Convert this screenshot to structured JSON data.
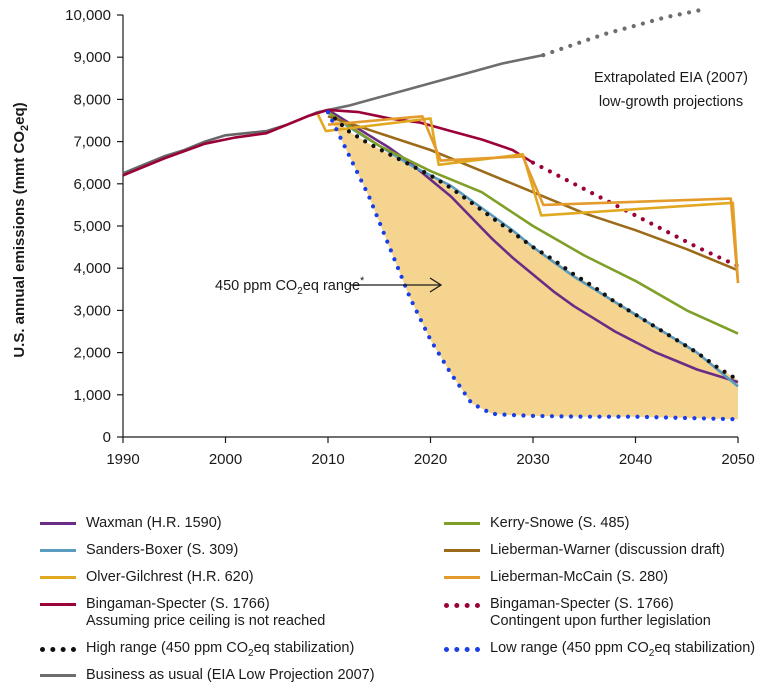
{
  "chart_data": {
    "type": "line",
    "ylabel": "U.S. annual emissions (mmt CO2eq)",
    "xlim": [
      1990,
      2050
    ],
    "ylim": [
      0,
      10000
    ],
    "x_ticks": [
      "1990",
      "2000",
      "2010",
      "2020",
      "2030",
      "2040",
      "2050"
    ],
    "y_ticks": [
      "0",
      "1,000",
      "2,000",
      "3,000",
      "4,000",
      "5,000",
      "6,000",
      "7,000",
      "8,000",
      "9,000",
      "10,000"
    ],
    "annotations": {
      "extrapolated_line1": "Extrapolated EIA (2007)",
      "extrapolated_line2": "low-growth projections",
      "range_label": "450 ppm CO",
      "range_label_sub": "2",
      "range_label_end": "eq range",
      "range_label_star": "*"
    },
    "range_band": {
      "name": "450 ppm CO2eq range",
      "color": "#f5d48f",
      "upper": "high_range",
      "lower": "low_range"
    },
    "series": [
      {
        "key": "history",
        "style": "solid",
        "color": "#666666",
        "x": [
          1990,
          1992,
          1994,
          1996,
          1998,
          2000,
          2002,
          2004,
          2006,
          2008,
          2009
        ],
        "y": [
          6250,
          6450,
          6650,
          6800,
          7000,
          7150,
          7200,
          7250,
          7400,
          7600,
          7700
        ]
      },
      {
        "key": "bau",
        "style": "solid",
        "color": "#6d6d6d",
        "x": [
          2009,
          2012,
          2015,
          2018,
          2021,
          2024,
          2027,
          2030,
          2031
        ],
        "y": [
          7700,
          7850,
          8050,
          8250,
          8450,
          8650,
          8850,
          9000,
          9050
        ]
      },
      {
        "key": "bau_extrapolated",
        "style": "dotted",
        "color": "#6d6d6d",
        "x": [
          2031,
          2034,
          2037,
          2040,
          2043,
          2047
        ],
        "y": [
          9050,
          9300,
          9550,
          9750,
          9950,
          10150
        ]
      },
      {
        "key": "bingaman_hist",
        "style": "solid",
        "color": "#9b0039",
        "x": [
          1990,
          1994,
          1998,
          2001,
          2004,
          2008,
          2010
        ],
        "y": [
          6200,
          6600,
          6950,
          7100,
          7200,
          7600,
          7750
        ]
      },
      {
        "key": "waxman",
        "style": "solid",
        "color": "#6b2c86",
        "x": [
          2010,
          2012,
          2014,
          2016,
          2018,
          2020,
          2022,
          2024,
          2026,
          2028,
          2030,
          2032,
          2034,
          2036,
          2038,
          2040,
          2042,
          2044,
          2046,
          2048,
          2050
        ],
        "y": [
          7750,
          7450,
          7150,
          6850,
          6500,
          6100,
          5700,
          5200,
          4700,
          4250,
          3850,
          3450,
          3100,
          2800,
          2500,
          2250,
          2000,
          1800,
          1600,
          1450,
          1300
        ]
      },
      {
        "key": "sanders_boxer",
        "style": "solid",
        "color": "#5b9bbf",
        "x": [
          2010,
          2012,
          2014,
          2016,
          2018,
          2020,
          2022,
          2024,
          2026,
          2028,
          2030,
          2032,
          2034,
          2036,
          2038,
          2040,
          2042,
          2044,
          2046,
          2048,
          2050
        ],
        "y": [
          7700,
          7350,
          7050,
          6750,
          6450,
          6200,
          5950,
          5600,
          5250,
          4900,
          4500,
          4150,
          3800,
          3500,
          3200,
          2900,
          2600,
          2300,
          2000,
          1600,
          1200
        ]
      },
      {
        "key": "kerry_snowe",
        "style": "solid",
        "color": "#7f9f26",
        "x": [
          2010,
          2015,
          2020,
          2025,
          2030,
          2035,
          2040,
          2045,
          2050
        ],
        "y": [
          7700,
          6900,
          6300,
          5800,
          5000,
          4300,
          3700,
          3000,
          2450
        ]
      },
      {
        "key": "lieberman_warner",
        "style": "solid",
        "color": "#9b6b1a",
        "x": [
          2010,
          2015,
          2020,
          2025,
          2030,
          2035,
          2040,
          2045,
          2050
        ],
        "y": [
          7600,
          7200,
          6800,
          6300,
          5800,
          5300,
          4900,
          4450,
          3950
        ]
      },
      {
        "key": "bingaman_specter",
        "style": "solid",
        "color": "#9b0039",
        "x": [
          2010,
          2013,
          2016,
          2019,
          2022,
          2025,
          2028,
          2030
        ],
        "y": [
          7750,
          7700,
          7550,
          7450,
          7250,
          7050,
          6800,
          6500
        ]
      },
      {
        "key": "bingaman_specter_contingent",
        "style": "dotted",
        "color": "#9b0039",
        "x": [
          2030,
          2034,
          2038,
          2042,
          2046,
          2050
        ],
        "y": [
          6500,
          6000,
          5500,
          5000,
          4500,
          4050
        ]
      },
      {
        "key": "olver_gilchrest",
        "style": "solid",
        "color": "#e0a921",
        "x": [
          2009,
          2009.8,
          2020,
          2020.8,
          2029,
          2030.8,
          2049.5,
          2050
        ],
        "y": [
          7650,
          7250,
          7550,
          6450,
          6700,
          5250,
          5550,
          3650
        ]
      },
      {
        "key": "lieberman_mccain",
        "style": "solid",
        "color": "#e59b2c",
        "x": [
          2010,
          2019.2,
          2021,
          2029,
          2031,
          2049.3,
          2050
        ],
        "y": [
          7400,
          7600,
          6550,
          6650,
          5500,
          5650,
          3650
        ]
      },
      {
        "key": "high_range",
        "style": "dotted",
        "color": "#111111",
        "x": [
          2010,
          2012,
          2014,
          2016,
          2018,
          2020,
          2022,
          2024,
          2026,
          2028,
          2030,
          2032,
          2034,
          2036,
          2038,
          2040,
          2042,
          2044,
          2046,
          2048,
          2050
        ],
        "y": [
          7700,
          7250,
          6950,
          6700,
          6450,
          6200,
          5900,
          5550,
          5200,
          4850,
          4500,
          4200,
          3850,
          3550,
          3200,
          2900,
          2600,
          2300,
          2000,
          1650,
          1350
        ]
      },
      {
        "key": "low_range",
        "style": "dotted",
        "color": "#1a3ee8",
        "x": [
          2010,
          2012,
          2014,
          2016,
          2018,
          2020,
          2022,
          2024,
          2026,
          2028,
          2030,
          2035,
          2040,
          2045,
          2050
        ],
        "y": [
          7700,
          6700,
          5700,
          4500,
          3300,
          2300,
          1500,
          800,
          550,
          520,
          500,
          480,
          480,
          450,
          420
        ]
      }
    ]
  },
  "legend": {
    "left": [
      {
        "label": "Waxman (H.R. 1590)",
        "color": "#6b2c86",
        "style": "solid"
      },
      {
        "label": "Sanders-Boxer (S. 309)",
        "color": "#5b9bbf",
        "style": "solid"
      },
      {
        "label": "Olver-Gilchrest (H.R. 620)",
        "color": "#e0a921",
        "style": "solid"
      },
      {
        "label": "Bingaman-Specter (S. 1766)",
        "sub": "Assuming price ceiling is not reached",
        "color": "#9b0039",
        "style": "solid"
      },
      {
        "label": "High range (450 ppm CO",
        "sub2": "2",
        "end": "eq stabilization)",
        "color": "#111111",
        "style": "dotted"
      },
      {
        "label": "Business as usual (EIA Low Projection 2007)",
        "color": "#6d6d6d",
        "style": "solid"
      }
    ],
    "right": [
      {
        "label": "Kerry-Snowe (S. 485)",
        "color": "#7f9f26",
        "style": "solid"
      },
      {
        "label": "Lieberman-Warner (discussion draft)",
        "color": "#9b6b1a",
        "style": "solid"
      },
      {
        "label": "Lieberman-McCain (S. 280)",
        "color": "#e59b2c",
        "style": "solid"
      },
      {
        "label": "Bingaman-Specter (S. 1766)",
        "sub": "Contingent upon further legislation",
        "color": "#9b0039",
        "style": "dotted"
      },
      {
        "label": "Low range (450 ppm CO",
        "sub2": "2",
        "end": "eq stabilization)",
        "color": "#1a3ee8",
        "style": "dotted"
      }
    ]
  }
}
